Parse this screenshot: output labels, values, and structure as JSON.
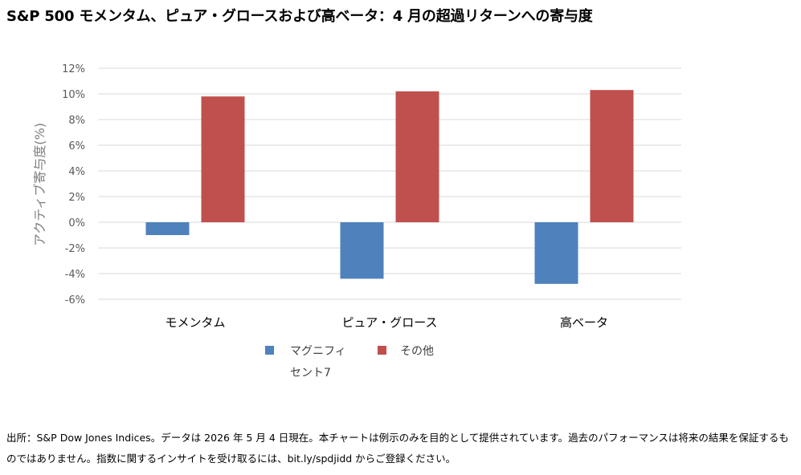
{
  "title": "S&P 500 モメンタム、ピュア・グロースおよび高ベータ：4 月の超過リターンへの寄与度",
  "footnote": "出所：S&P Dow Jones Indices。データは 2026 年 5 月 4 日現在。本チャートは例示のみを目的として提供されています。過去のパフォーマンスは将来の結果を保証するものではありません。指数に関するインサイトを受け取るには、bit.ly/spdjidd からご登録ください。",
  "chart_data": {
    "type": "bar",
    "categories": [
      "モメンタム",
      "ピュア・グロース",
      "高ベータ"
    ],
    "series": [
      {
        "name": "マグニフィセント7",
        "color": "#4F81BD",
        "values": [
          -1.0,
          -4.4,
          -4.8
        ]
      },
      {
        "name": "その他",
        "color": "#C0504D",
        "values": [
          9.8,
          10.2,
          10.3
        ]
      }
    ],
    "xlabel": "",
    "ylabel": "アクティブ寄与度(%)",
    "ylim": [
      -6,
      12
    ],
    "yticks": [
      "12%",
      "10%",
      "8%",
      "6%",
      "4%",
      "2%",
      "0%",
      "-2%",
      "-4%",
      "-6%"
    ],
    "grid": true,
    "legend": "bottom"
  }
}
